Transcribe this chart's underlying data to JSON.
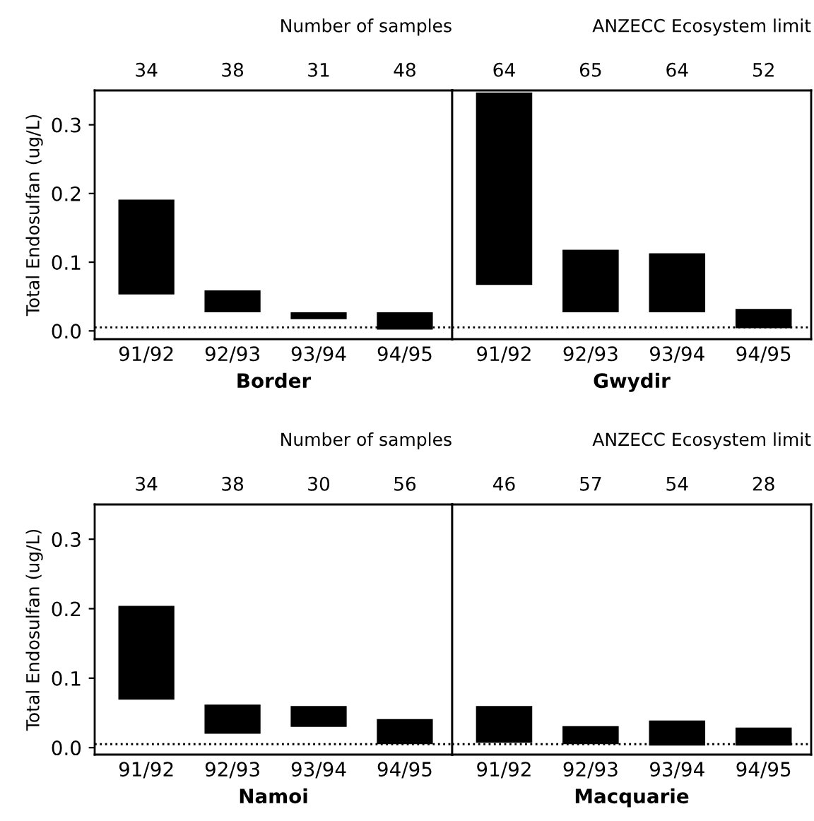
{
  "chart_data": [
    {
      "type": "bar",
      "xlabel": "Border",
      "ylabel": "Total Endosulfan (ug/L)",
      "categories": [
        "91/92",
        "92/93",
        "93/94",
        "94/95"
      ],
      "base": [
        0.053,
        0.027,
        0.017,
        0.002
      ],
      "values": [
        0.138,
        0.032,
        0.01,
        0.025
      ],
      "color": "#000000",
      "ylim": [
        -0.012,
        0.35
      ],
      "yticks": [
        {
          "value": 0,
          "label": "0.0"
        },
        {
          "value": 0.1,
          "label": "0.1"
        },
        {
          "value": 0.2,
          "label": "0.2"
        },
        {
          "value": 0.3,
          "label": "0.3"
        }
      ],
      "ref_lines": [
        {
          "axis": "y",
          "value": 0.005,
          "line_style": "dotted",
          "color": "#000000"
        }
      ],
      "annotations": [
        "Number of samples",
        "34",
        "38",
        "31",
        "48"
      ]
    },
    {
      "type": "bar",
      "xlabel": "Gwydir",
      "categories": [
        "91/92",
        "92/93",
        "93/94",
        "94/95"
      ],
      "base": [
        0.067,
        0.027,
        0.027,
        0.004
      ],
      "values": [
        0.28,
        0.091,
        0.086,
        0.028
      ],
      "color": "#000000",
      "ylim": [
        -0.012,
        0.35
      ],
      "tick_labels": "x",
      "ref_lines": [
        {
          "axis": "y",
          "value": 0.005,
          "line_style": "dotted",
          "color": "#000000",
          "label": "ANZECC Ecosystem limit"
        }
      ],
      "annotations": [
        "64",
        "65",
        "64",
        "52"
      ]
    },
    {
      "type": "bar",
      "xlabel": "Namoi",
      "ylabel": "Total Endosulfan (ug/L)",
      "categories": [
        "91/92",
        "92/93",
        "93/94",
        "94/95"
      ],
      "base": [
        0.069,
        0.02,
        0.03,
        0.005
      ],
      "values": [
        0.135,
        0.042,
        0.03,
        0.036
      ],
      "color": "#000000",
      "ylim": [
        -0.01,
        0.35
      ],
      "yticks": [
        {
          "value": 0,
          "label": "0.0"
        },
        {
          "value": 0.1,
          "label": "0.1"
        },
        {
          "value": 0.2,
          "label": "0.2"
        },
        {
          "value": 0.3,
          "label": "0.3"
        }
      ],
      "ref_lines": [
        {
          "axis": "y",
          "value": 0.005,
          "line_style": "dotted",
          "color": "#000000"
        }
      ],
      "annotations": [
        "Number of samples",
        "34",
        "38",
        "30",
        "56"
      ]
    },
    {
      "type": "bar",
      "xlabel": "Macquarie",
      "categories": [
        "91/92",
        "92/93",
        "93/94",
        "94/95"
      ],
      "base": [
        0.007,
        0.005,
        0.003,
        0.003
      ],
      "values": [
        0.053,
        0.026,
        0.036,
        0.026
      ],
      "color": "#000000",
      "ylim": [
        -0.01,
        0.35
      ],
      "tick_labels": "x",
      "ref_lines": [
        {
          "axis": "y",
          "value": 0.005,
          "line_style": "dotted",
          "color": "#000000",
          "label": "ANZECC Ecosystem limit"
        }
      ],
      "annotations": [
        "46",
        "57",
        "54",
        "28"
      ]
    }
  ]
}
